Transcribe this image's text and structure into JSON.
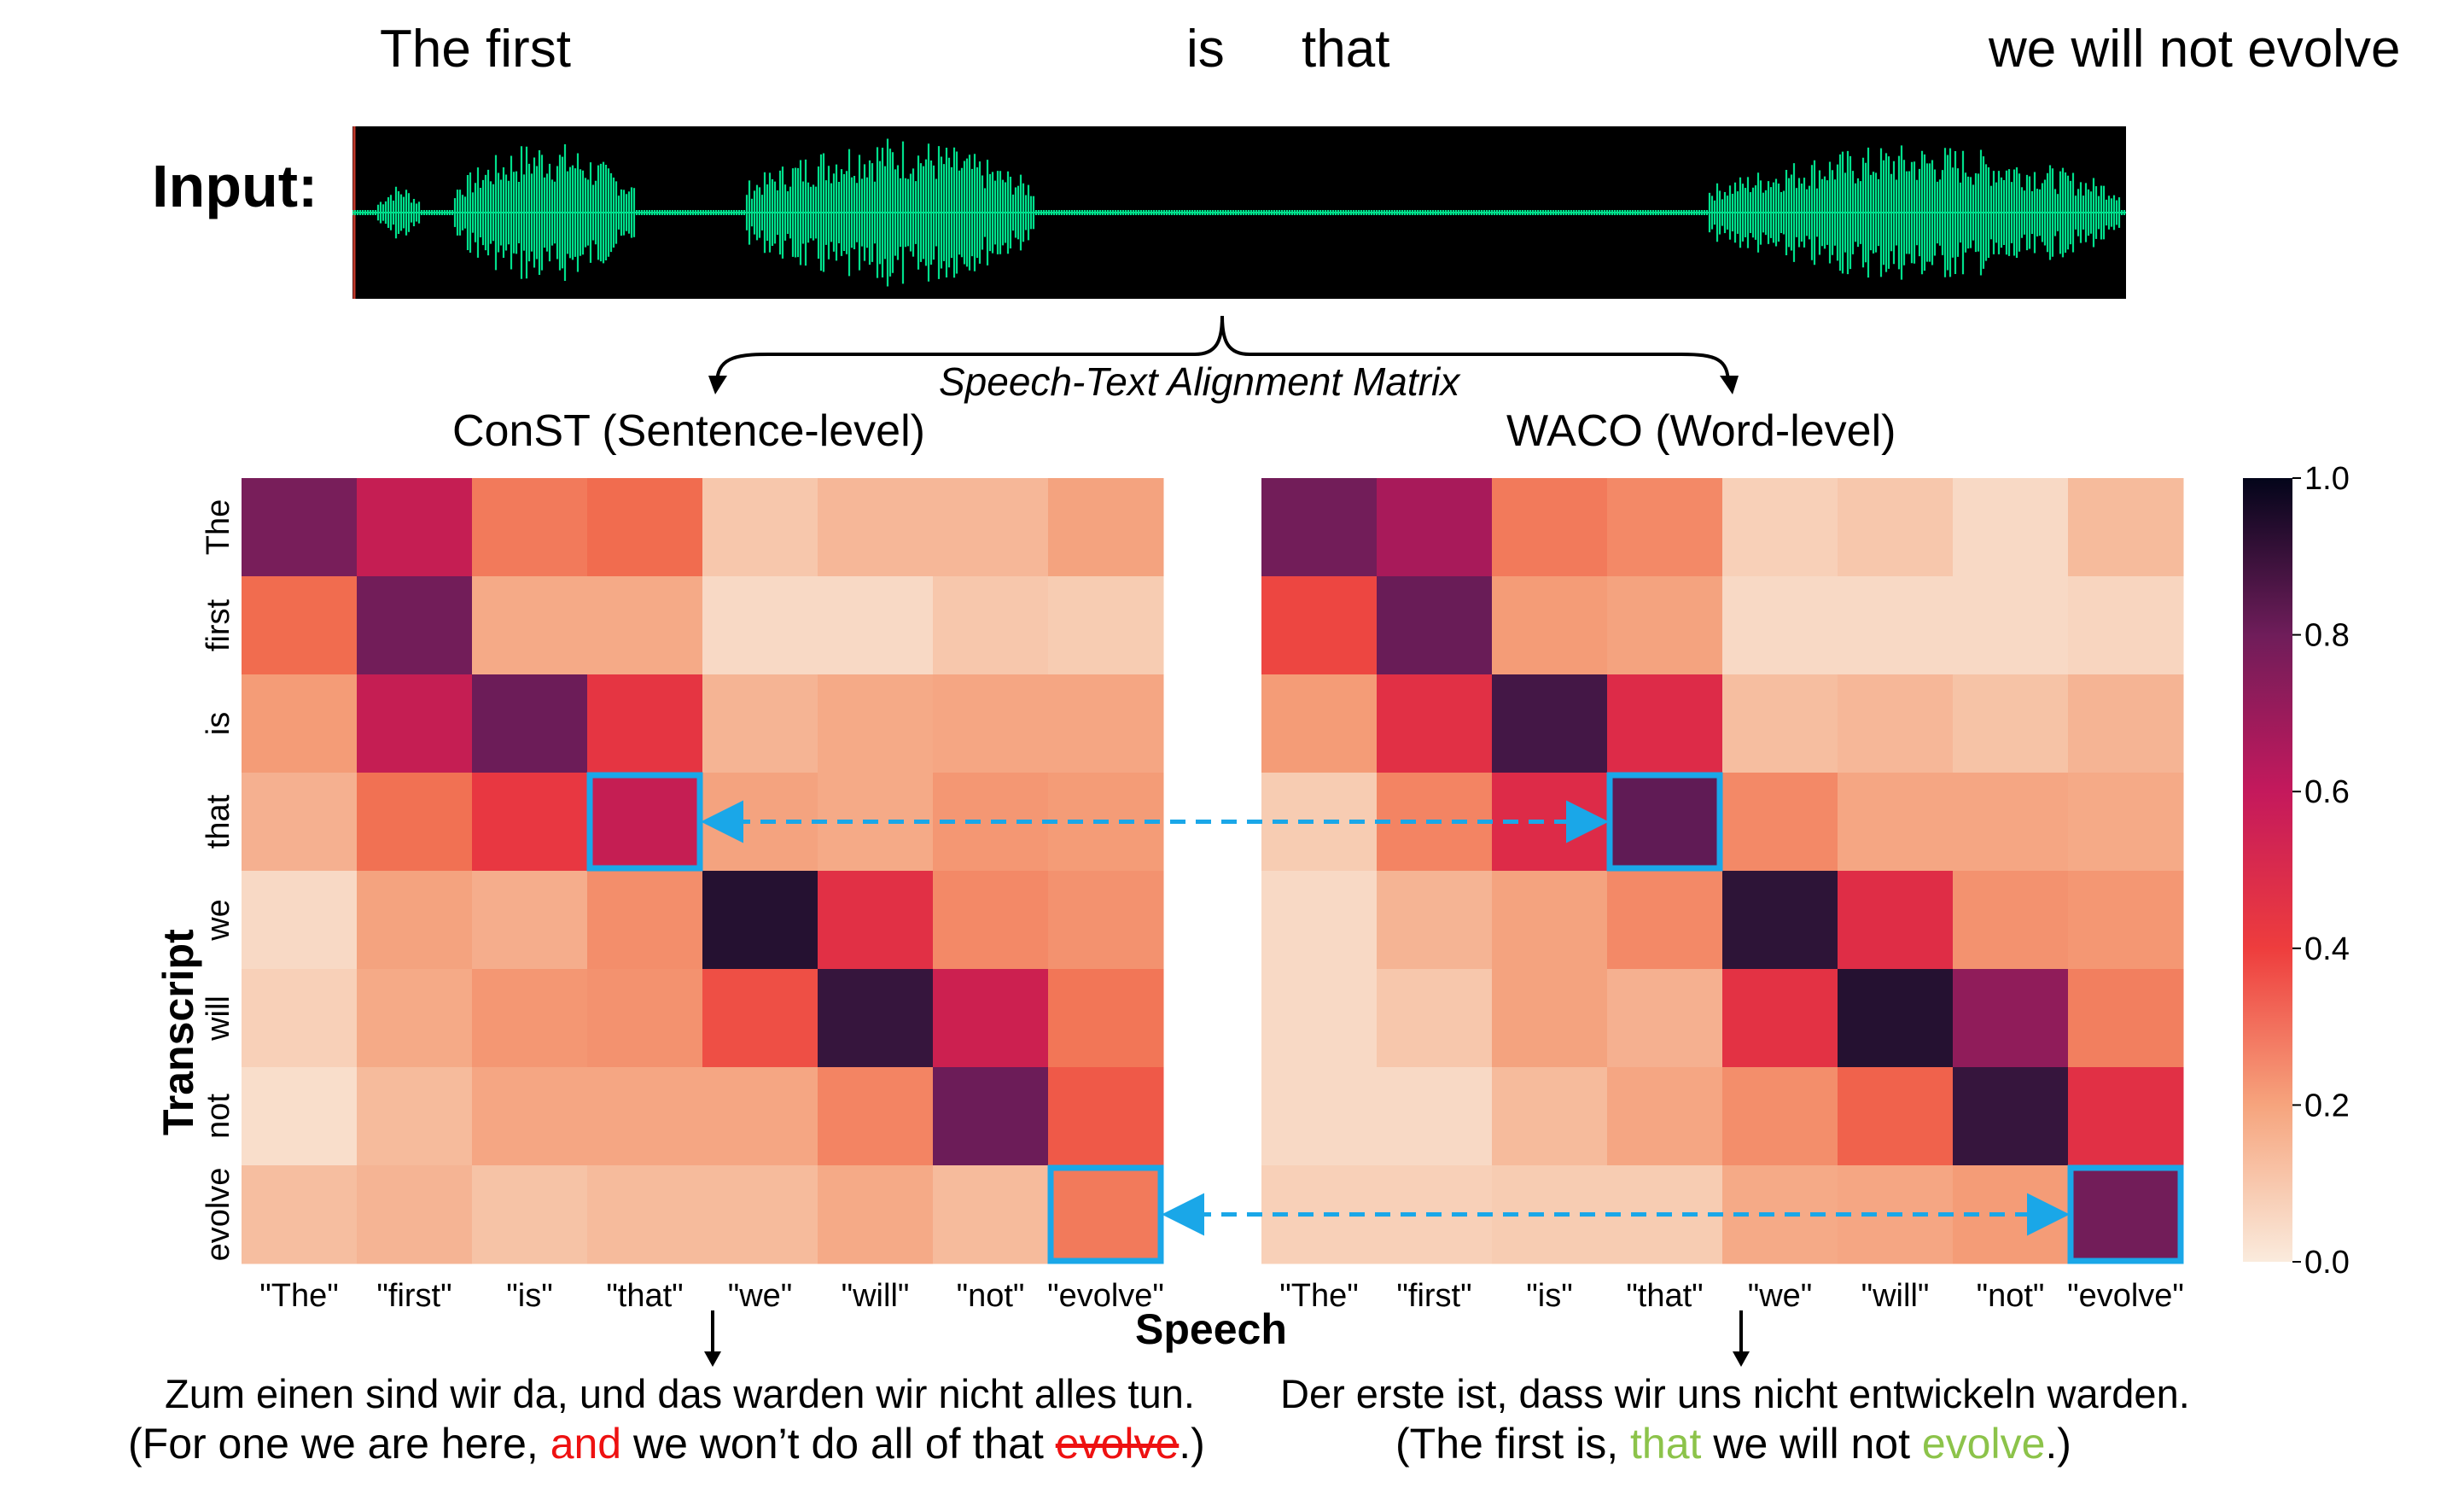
{
  "input": {
    "label": "Input:",
    "words": [
      "The first",
      "is",
      "that",
      "we will not evolve"
    ]
  },
  "alignment_label": "Speech-Text Alignment Matrix",
  "colors": {
    "waveform_bg": "#000000",
    "waveform": "#00e08c",
    "highlight_box": "#1aa7e8",
    "red_text": "#ee1111",
    "green_text": "#8cc34a"
  },
  "axis": {
    "ylabel": "Transcript",
    "xlabel": "Speech"
  },
  "chart_data": [
    {
      "type": "heatmap",
      "title": "ConST (Sentence-level)",
      "rows": [
        "The",
        "first",
        "is",
        "that",
        "we",
        "will",
        "not",
        "evolve"
      ],
      "columns": [
        "\"The\"",
        "\"first\"",
        "\"is\"",
        "\"that\"",
        "\"we\"",
        "\"will\"",
        "\"not\"",
        "\"evolve\""
      ],
      "values": [
        [
          0.7,
          0.55,
          0.27,
          0.3,
          0.08,
          0.12,
          0.12,
          0.18
        ],
        [
          0.3,
          0.72,
          0.16,
          0.16,
          0.04,
          0.04,
          0.08,
          0.07
        ],
        [
          0.2,
          0.55,
          0.74,
          0.43,
          0.13,
          0.16,
          0.17,
          0.17
        ],
        [
          0.14,
          0.29,
          0.42,
          0.55,
          0.18,
          0.16,
          0.21,
          0.2
        ],
        [
          0.04,
          0.18,
          0.15,
          0.23,
          0.92,
          0.45,
          0.24,
          0.22
        ],
        [
          0.06,
          0.16,
          0.21,
          0.22,
          0.36,
          0.88,
          0.53,
          0.28
        ],
        [
          0.03,
          0.11,
          0.17,
          0.17,
          0.17,
          0.25,
          0.74,
          0.34
        ],
        [
          0.1,
          0.13,
          0.09,
          0.11,
          0.11,
          0.16,
          0.11,
          0.27
        ]
      ],
      "highlight_cells": [
        [
          3,
          3
        ],
        [
          7,
          7
        ]
      ],
      "translation_de": "Zum einen sind wir da, und das warden wir nicht alles tun.",
      "translation_en": {
        "pre": "(For one we are here, ",
        "red": "and",
        "mid": " we won’t do all of that ",
        "strike": "evolve",
        "post": ".)"
      }
    },
    {
      "type": "heatmap",
      "title": "WACO (Word-level)",
      "rows": [
        "The",
        "first",
        "is",
        "that",
        "we",
        "will",
        "not",
        "evolve"
      ],
      "columns": [
        "\"The\"",
        "\"first\"",
        "\"is\"",
        "\"that\"",
        "\"we\"",
        "\"will\"",
        "\"not\"",
        "\"evolve\""
      ],
      "values": [
        [
          0.72,
          0.62,
          0.27,
          0.24,
          0.06,
          0.08,
          0.04,
          0.11
        ],
        [
          0.38,
          0.75,
          0.2,
          0.18,
          0.04,
          0.04,
          0.04,
          0.05
        ],
        [
          0.2,
          0.45,
          0.85,
          0.47,
          0.1,
          0.12,
          0.09,
          0.13
        ],
        [
          0.07,
          0.25,
          0.47,
          0.78,
          0.24,
          0.17,
          0.17,
          0.16
        ],
        [
          0.04,
          0.13,
          0.18,
          0.24,
          0.9,
          0.46,
          0.22,
          0.21
        ],
        [
          0.04,
          0.08,
          0.18,
          0.14,
          0.44,
          0.92,
          0.66,
          0.26
        ],
        [
          0.04,
          0.04,
          0.11,
          0.17,
          0.23,
          0.32,
          0.88,
          0.45
        ],
        [
          0.06,
          0.06,
          0.07,
          0.07,
          0.16,
          0.17,
          0.2,
          0.72
        ]
      ],
      "highlight_cells": [
        [
          3,
          3
        ],
        [
          7,
          7
        ]
      ],
      "translation_de": "Der erste ist, dass wir uns nicht entwickeln warden.",
      "translation_en": {
        "pre": "(The first is, ",
        "green1": "that",
        "mid": " we will not ",
        "green2": "evolve",
        "post": ".)"
      }
    }
  ],
  "colorbar": {
    "ticks": [
      "1.0",
      "0.8",
      "0.6",
      "0.4",
      "0.2",
      "0.0"
    ],
    "range": [
      0,
      1
    ]
  }
}
